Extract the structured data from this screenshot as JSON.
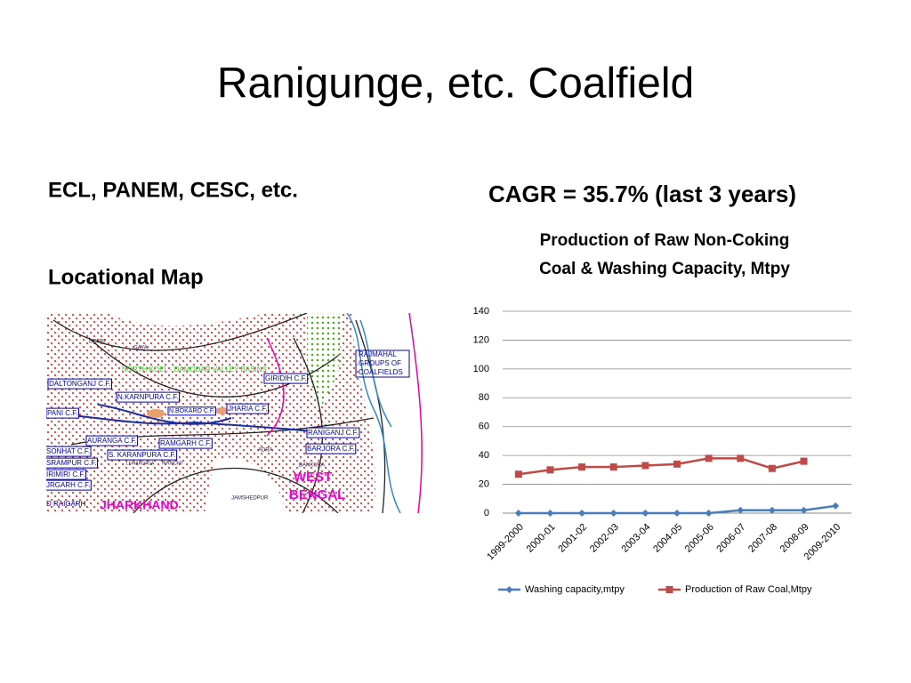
{
  "slide": {
    "title": "Ranigunge, etc.  Coalfield",
    "left_heading": "ECL, PANEM, CESC, etc.",
    "map_heading": "Locational Map",
    "right_heading": "CAGR = 35.7% (last 3 years)"
  },
  "map": {
    "labels": [
      "DEHRI",
      "GAYA",
      "NORTH KOEL - DAMODAR VALLEY BASINS",
      "RAJMAHAL",
      "GROUPS OF",
      "COALFIELDS",
      "GIRIDIH C.F.",
      "DALTONGANJ C.F.",
      "N.KARNPURA C.F.",
      "N.BOKARO C.F.",
      "JHARIA C.F.",
      "PANI C.F.",
      "RANIGANJ C.F.",
      "AURANGA C.F.",
      "RAMGARH C.F.",
      "BARJORA C.F.",
      "S. KARANPURA C.F.",
      "SONHAT C.F.",
      "SRAMPUR C.F.",
      "ADRA",
      "BANKURA",
      "RANCHI",
      "LOHARDAGA",
      "IRIMIRI C.F.",
      "JRGARH C.F.",
      "WEST",
      "BENGAL",
      "JAMSHEDPUR",
      "JHARKHAND",
      "D RAIGARH"
    ]
  },
  "chart_data": {
    "type": "line",
    "title": [
      "Production of Raw Non-Coking",
      "Coal & Washing Capacity, Mtpy"
    ],
    "categories": [
      "1999-2000",
      "2000-01",
      "2001-02",
      "2002-03",
      "2003-04",
      "2004-05",
      "2005-06",
      "2006-07",
      "2007-08",
      "2008-09",
      "2009-2010"
    ],
    "series": [
      {
        "name": "Washing capacity,mtpy",
        "color": "#4a7ebb",
        "marker": "diamond",
        "values": [
          0,
          0,
          0,
          0,
          0,
          0,
          0,
          2,
          2,
          2,
          5
        ]
      },
      {
        "name": "Production of Raw Coal,Mtpy",
        "color": "#be4b48",
        "marker": "square",
        "values": [
          27,
          30,
          32,
          32,
          33,
          34,
          38,
          38,
          31,
          36,
          null
        ]
      }
    ],
    "ylim": [
      0,
      140
    ],
    "yticks": [
      0,
      20,
      40,
      60,
      80,
      100,
      120,
      140
    ],
    "grid": true,
    "legend": "bottom"
  }
}
